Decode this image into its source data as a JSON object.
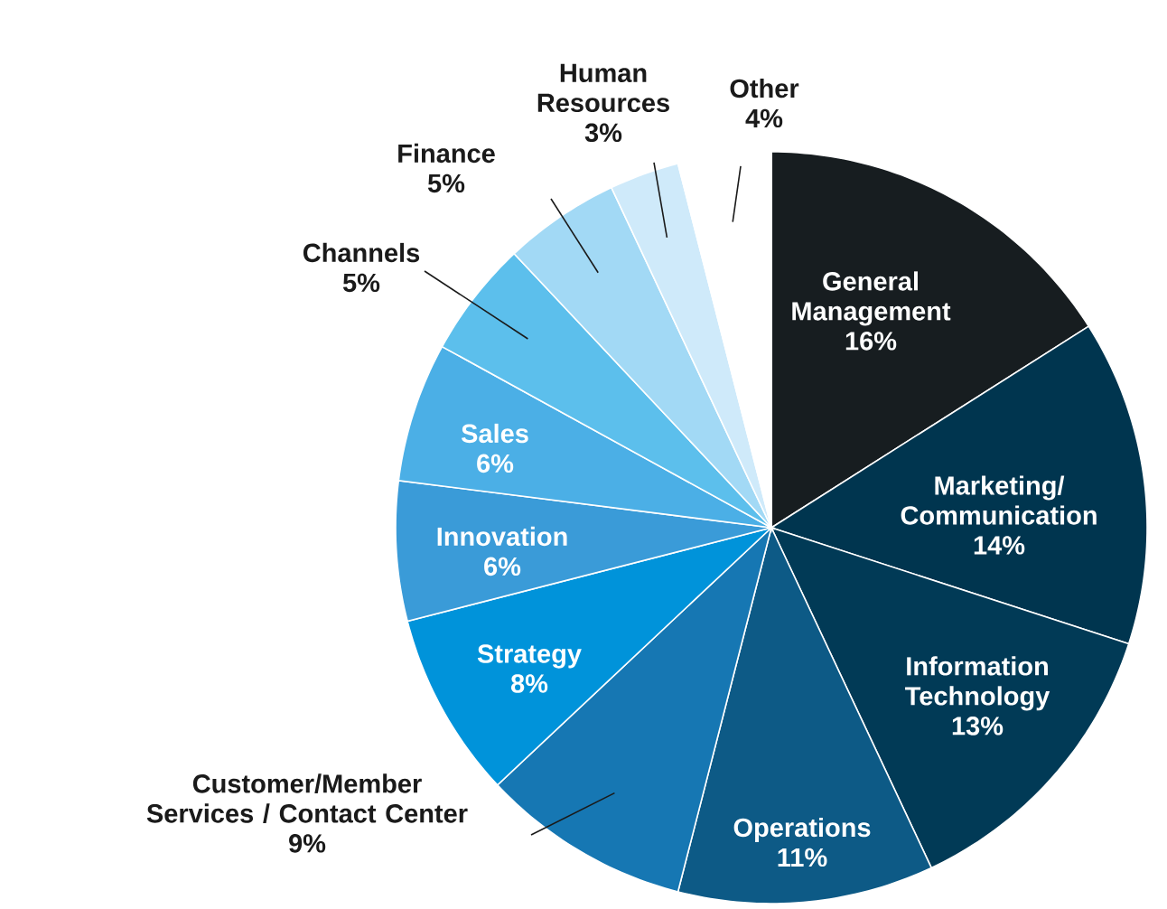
{
  "chart_data": {
    "type": "pie",
    "categories": [
      "General Management",
      "Marketing/ Communication",
      "Information Technology",
      "Operations",
      "Customer/Member Services / Contact Center",
      "Strategy",
      "Innovation",
      "Sales",
      "Channels",
      "Finance",
      "Human Resources",
      "Other"
    ],
    "values": [
      16,
      14,
      13,
      11,
      9,
      8,
      6,
      6,
      5,
      5,
      3,
      4
    ],
    "value_labels": [
      "16%",
      "14%",
      "13%",
      "11%",
      "9%",
      "8%",
      "6%",
      "6%",
      "5%",
      "5%",
      "3%",
      "4%"
    ],
    "colors": [
      "#171d20",
      "#00354f",
      "#013a56",
      "#0d5a86",
      "#1677b3",
      "#0093da",
      "#3a9bd8",
      "#4bafe6",
      "#5cbfec",
      "#a2d9f5",
      "#cfeafa",
      "#ffffff"
    ],
    "legend": false
  }
}
